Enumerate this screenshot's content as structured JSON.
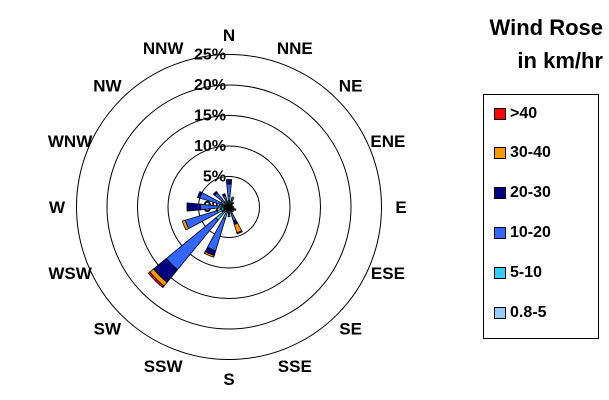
{
  "chart_data": {
    "type": "wind-rose",
    "title_line1": "Wind Rose",
    "title_line2": "in km/hr",
    "directions": [
      "N",
      "NNE",
      "NE",
      "ENE",
      "E",
      "ESE",
      "SE",
      "SSE",
      "S",
      "SSW",
      "SW",
      "WSW",
      "W",
      "WNW",
      "NW",
      "NNW"
    ],
    "radial_ticks": [
      "0%",
      "5%",
      "10%",
      "15%",
      "20%",
      "25%"
    ],
    "radial_tick_values": [
      0,
      5,
      10,
      15,
      20,
      25
    ],
    "radial_max": 25,
    "legend": [
      {
        "label": ">40",
        "color": "#ff0000"
      },
      {
        "label": "30-40",
        "color": "#ff9900"
      },
      {
        "label": "20-30",
        "color": "#000080"
      },
      {
        "label": "10-20",
        "color": "#3366ff"
      },
      {
        "label": "5-10",
        "color": "#33ccff"
      },
      {
        "label": "0.8-5",
        "color": "#99ccff"
      }
    ],
    "series": [
      {
        "name": "0.8-5",
        "color": "#99ccff",
        "values": [
          1.0,
          0.7,
          0.5,
          0.4,
          0.5,
          0.5,
          0.5,
          0.6,
          0.6,
          0.8,
          1.0,
          0.8,
          0.8,
          0.6,
          0.5,
          0.6
        ]
      },
      {
        "name": "5-10",
        "color": "#33ccff",
        "values": [
          0.8,
          0.5,
          0.3,
          0.2,
          0.3,
          0.4,
          0.3,
          0.5,
          0.5,
          1.2,
          1.8,
          1.2,
          0.9,
          0.6,
          0.5,
          0.4
        ]
      },
      {
        "name": "10-20",
        "color": "#3366ff",
        "values": [
          2.0,
          0.5,
          0.2,
          0.0,
          0.0,
          0.3,
          0.2,
          1.3,
          0.5,
          5.5,
          10.5,
          5.5,
          3.0,
          3.8,
          2.0,
          1.0
        ]
      },
      {
        "name": "20-30",
        "color": "#000080",
        "values": [
          0.7,
          0.0,
          0.0,
          0.0,
          0.0,
          0.0,
          0.0,
          0.6,
          0.0,
          0.8,
          2.7,
          0.0,
          2.1,
          0.4,
          0.3,
          0.3
        ]
      },
      {
        "name": "30-40",
        "color": "#ff9900",
        "values": [
          0.0,
          0.0,
          0.0,
          0.0,
          0.0,
          0.0,
          0.0,
          1.4,
          0.0,
          0.3,
          0.8,
          0.5,
          0.1,
          0.0,
          0.0,
          0.0
        ]
      },
      {
        "name": ">40",
        "color": "#ff0000",
        "values": [
          0.0,
          0.0,
          0.0,
          0.0,
          0.0,
          0.0,
          0.0,
          0.2,
          0.0,
          0.0,
          0.3,
          0.0,
          0.0,
          0.0,
          0.0,
          0.0
        ]
      }
    ]
  }
}
